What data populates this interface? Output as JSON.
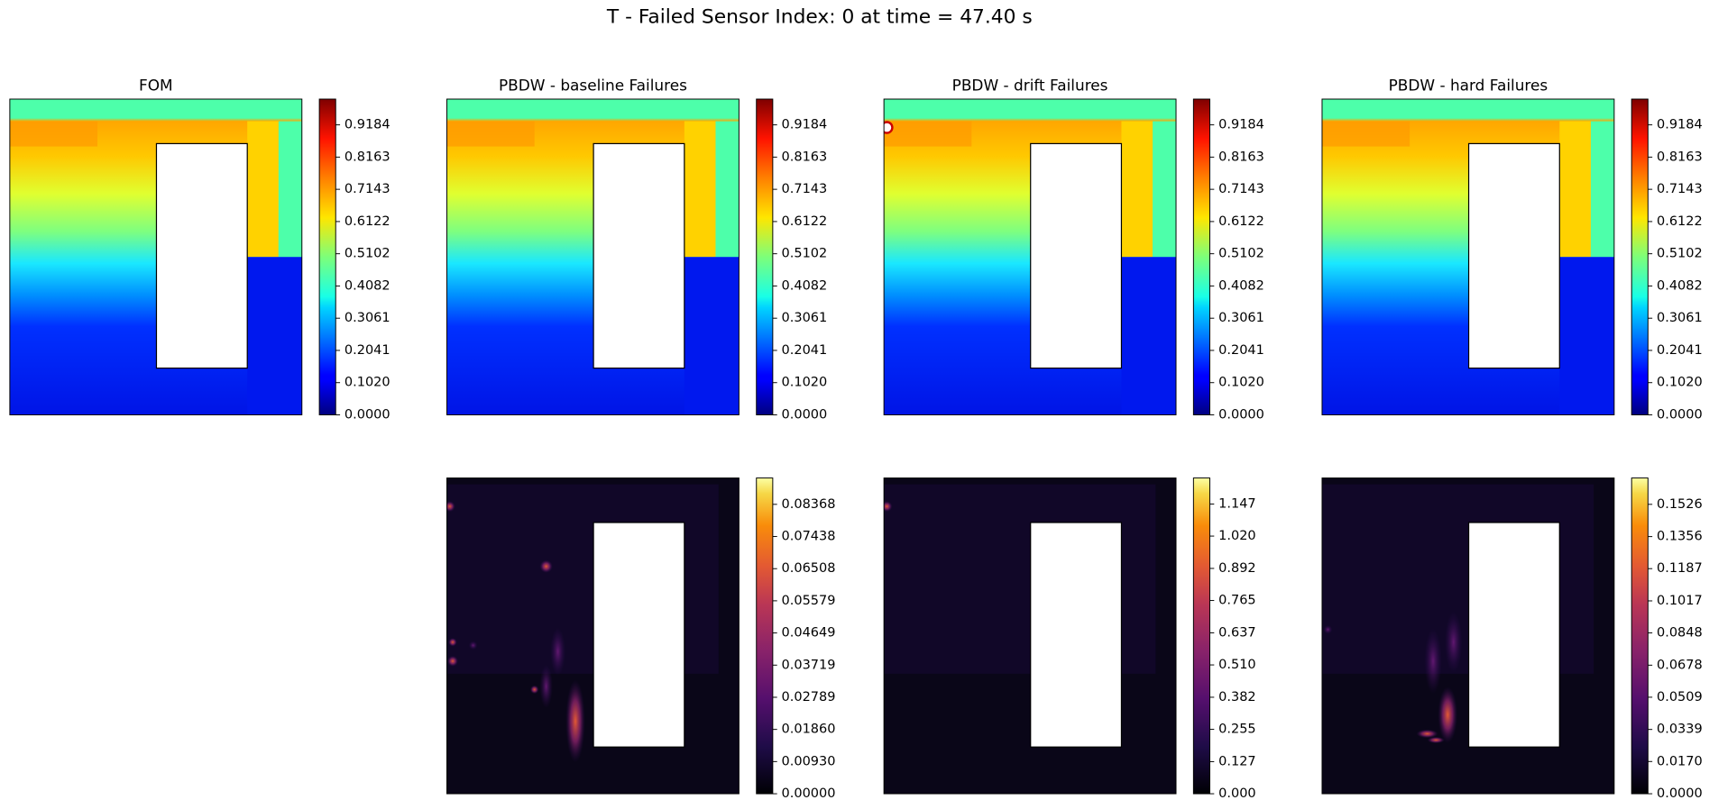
{
  "title": "T - Failed Sensor Index: 0 at time = 47.40 s",
  "chart_data": [
    {
      "type": "contour",
      "title": "FOM",
      "colormap": "jet",
      "clim": [
        0,
        1.0
      ],
      "cticks": [
        {
          "value": 0,
          "label": "0.0000"
        },
        {
          "value": 0.102,
          "label": "0.1020"
        },
        {
          "value": 0.2041,
          "label": "0.2041"
        },
        {
          "value": 0.3061,
          "label": "0.3061"
        },
        {
          "value": 0.4082,
          "label": "0.4082"
        },
        {
          "value": 0.5102,
          "label": "0.5102"
        },
        {
          "value": 0.6122,
          "label": "0.6122"
        },
        {
          "value": 0.7143,
          "label": "0.7143"
        },
        {
          "value": 0.8163,
          "label": "0.8163"
        },
        {
          "value": 0.9184,
          "label": "0.9184"
        }
      ]
    },
    {
      "type": "contour",
      "title": "PBDW - baseline Failures",
      "colormap": "jet",
      "clim": [
        0,
        1.0
      ],
      "cticks": [
        {
          "value": 0,
          "label": "0.0000"
        },
        {
          "value": 0.102,
          "label": "0.1020"
        },
        {
          "value": 0.2041,
          "label": "0.2041"
        },
        {
          "value": 0.3061,
          "label": "0.3061"
        },
        {
          "value": 0.4082,
          "label": "0.4082"
        },
        {
          "value": 0.5102,
          "label": "0.5102"
        },
        {
          "value": 0.6122,
          "label": "0.6122"
        },
        {
          "value": 0.7143,
          "label": "0.7143"
        },
        {
          "value": 0.8163,
          "label": "0.8163"
        },
        {
          "value": 0.9184,
          "label": "0.9184"
        }
      ]
    },
    {
      "type": "contour",
      "title": "PBDW - drift Failures",
      "colormap": "jet",
      "clim": [
        0,
        1.0
      ],
      "cticks": [
        {
          "value": 0,
          "label": "0.0000"
        },
        {
          "value": 0.102,
          "label": "0.1020"
        },
        {
          "value": 0.2041,
          "label": "0.2041"
        },
        {
          "value": 0.3061,
          "label": "0.3061"
        },
        {
          "value": 0.4082,
          "label": "0.4082"
        },
        {
          "value": 0.5102,
          "label": "0.5102"
        },
        {
          "value": 0.6122,
          "label": "0.6122"
        },
        {
          "value": 0.7143,
          "label": "0.7143"
        },
        {
          "value": 0.8163,
          "label": "0.8163"
        },
        {
          "value": 0.9184,
          "label": "0.9184"
        }
      ]
    },
    {
      "type": "contour",
      "title": "PBDW - hard Failures",
      "colormap": "jet",
      "clim": [
        0,
        1.0
      ],
      "cticks": [
        {
          "value": 0,
          "label": "0.0000"
        },
        {
          "value": 0.102,
          "label": "0.1020"
        },
        {
          "value": 0.2041,
          "label": "0.2041"
        },
        {
          "value": 0.3061,
          "label": "0.3061"
        },
        {
          "value": 0.4082,
          "label": "0.4082"
        },
        {
          "value": 0.5102,
          "label": "0.5102"
        },
        {
          "value": 0.6122,
          "label": "0.6122"
        },
        {
          "value": 0.7143,
          "label": "0.7143"
        },
        {
          "value": 0.8163,
          "label": "0.8163"
        },
        {
          "value": 0.9184,
          "label": "0.9184"
        }
      ]
    },
    {
      "type": "contour",
      "colormap": "inferno",
      "clim": [
        0,
        0.0913
      ],
      "cticks": [
        {
          "value": 0,
          "label": "0.00000"
        },
        {
          "value": 0.0093,
          "label": "0.00930"
        },
        {
          "value": 0.0186,
          "label": "0.01860"
        },
        0.02789,
        0.03719,
        0.04649,
        0.05579,
        0.06508,
        0.07438,
        0.08368
      ]
    },
    {
      "type": "contour",
      "colormap": "inferno",
      "clim": [
        0,
        1.25
      ],
      "cticks": [
        {
          "value": 0,
          "label": "0.000"
        },
        0.127,
        0.255,
        0.382,
        {
          "value": 0.51,
          "label": "0.510"
        },
        0.637,
        0.765,
        0.892,
        {
          "value": 1.02,
          "label": "1.020"
        },
        1.147
      ]
    },
    {
      "type": "contour",
      "colormap": "inferno",
      "clim": [
        0,
        0.1665
      ],
      "cticks": [
        {
          "value": 0,
          "label": "0.0000"
        },
        {
          "value": 0.017,
          "label": "0.0170"
        },
        0.0339,
        0.0509,
        0.0678,
        0.0848,
        0.1017,
        0.1187,
        0.1356,
        0.1526
      ]
    }
  ]
}
